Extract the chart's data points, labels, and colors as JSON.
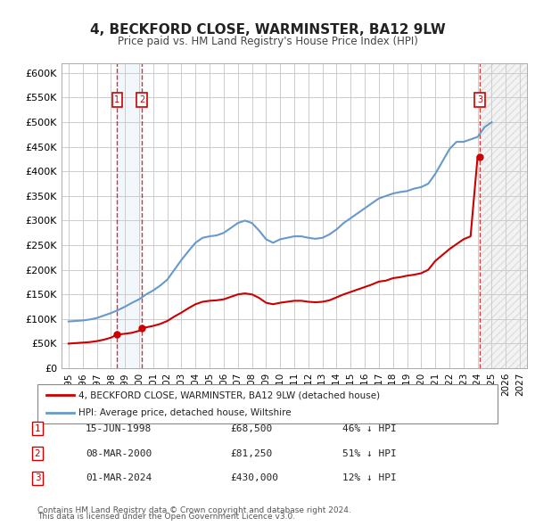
{
  "title": "4, BECKFORD CLOSE, WARMINSTER, BA12 9LW",
  "subtitle": "Price paid vs. HM Land Registry's House Price Index (HPI)",
  "legend_line1": "4, BECKFORD CLOSE, WARMINSTER, BA12 9LW (detached house)",
  "legend_line2": "HPI: Average price, detached house, Wiltshire",
  "footer1": "Contains HM Land Registry data © Crown copyright and database right 2024.",
  "footer2": "This data is licensed under the Open Government Licence v3.0.",
  "transactions": [
    {
      "num": 1,
      "date": "15-JUN-1998",
      "price": 68500,
      "hpi_pct": "46% ↓ HPI",
      "x": 1998.45
    },
    {
      "num": 2,
      "date": "08-MAR-2000",
      "price": 81250,
      "hpi_pct": "51% ↓ HPI",
      "x": 2000.19
    },
    {
      "num": 3,
      "date": "01-MAR-2024",
      "price": 430000,
      "hpi_pct": "12% ↓ HPI",
      "x": 2024.16
    }
  ],
  "xlim": [
    1994.5,
    2027.5
  ],
  "ylim": [
    0,
    620000
  ],
  "yticks": [
    0,
    50000,
    100000,
    150000,
    200000,
    250000,
    300000,
    350000,
    400000,
    450000,
    500000,
    550000,
    600000
  ],
  "ytick_labels": [
    "£0",
    "£50K",
    "£100K",
    "£150K",
    "£200K",
    "£250K",
    "£300K",
    "£350K",
    "£400K",
    "£450K",
    "£500K",
    "£550K",
    "£600K"
  ],
  "xticks": [
    1995,
    1996,
    1997,
    1998,
    1999,
    2000,
    2001,
    2002,
    2003,
    2004,
    2005,
    2006,
    2007,
    2008,
    2009,
    2010,
    2011,
    2012,
    2013,
    2014,
    2015,
    2016,
    2017,
    2018,
    2019,
    2020,
    2021,
    2022,
    2023,
    2024,
    2025,
    2026,
    2027
  ],
  "price_paid_color": "#cc0000",
  "hpi_color": "#6699cc",
  "background_color": "#f0f0f0",
  "plot_bg_color": "#ffffff",
  "future_hatch_color": "#dddddd",
  "vline_color": "#cc0000",
  "marker_box_color": "#cc0000"
}
